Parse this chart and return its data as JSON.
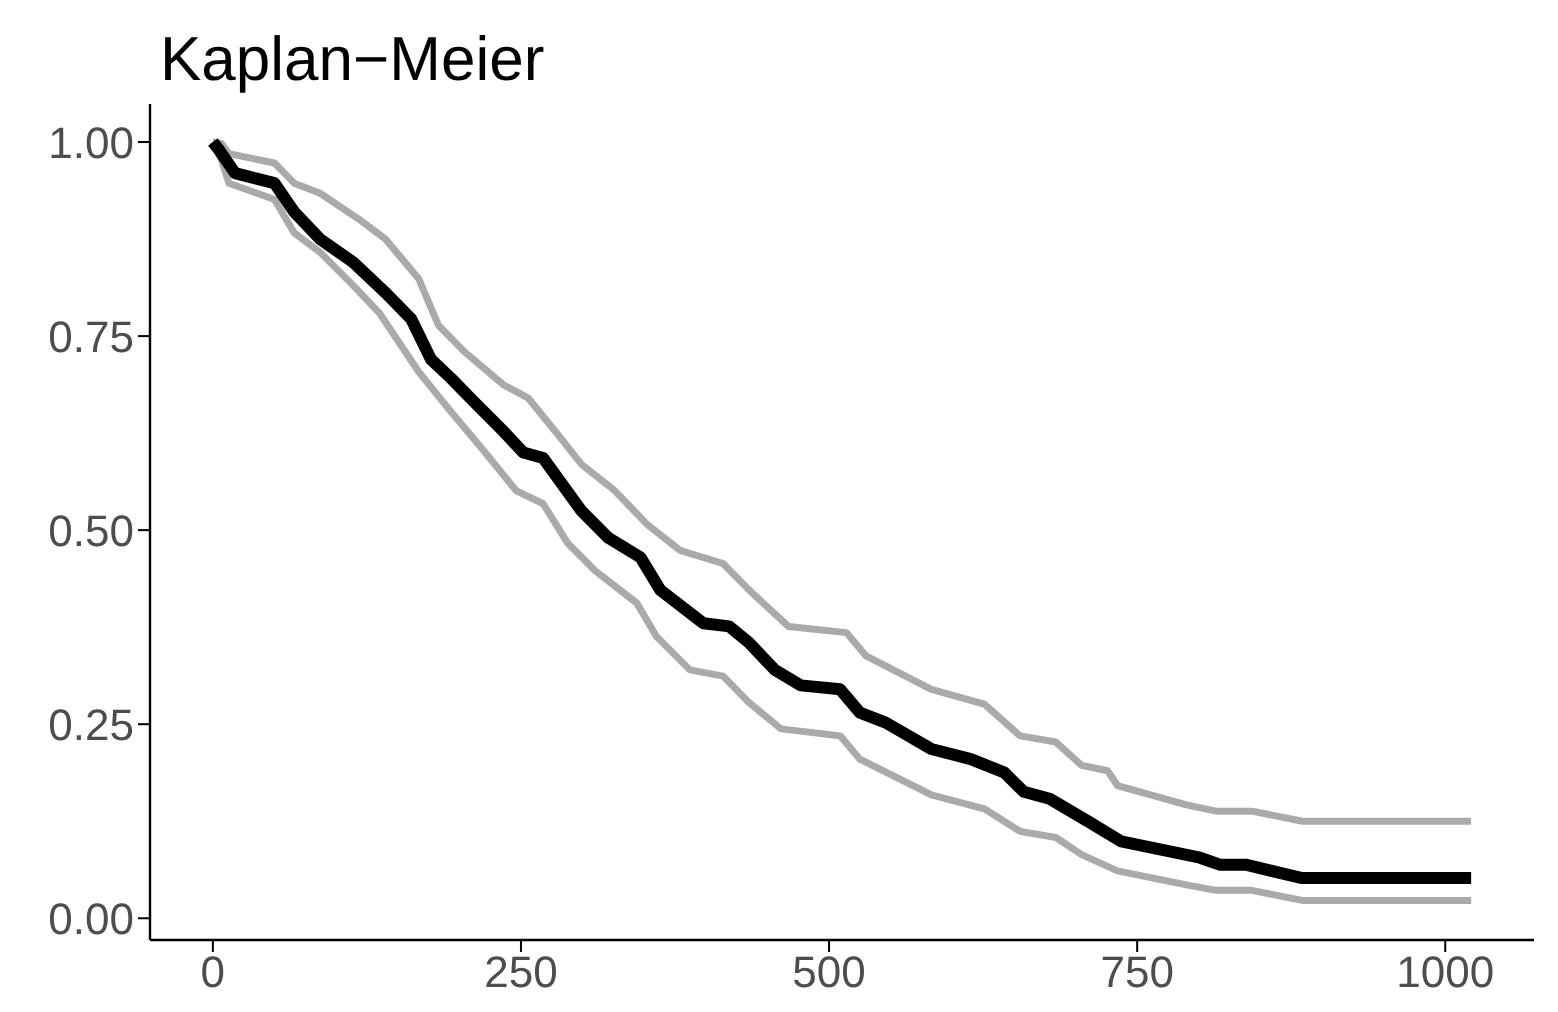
{
  "chart_data": {
    "type": "line",
    "title": "Kaplan−Meier",
    "xlim": [
      -51,
      1072
    ],
    "ylim": [
      -0.028,
      1.049
    ],
    "xticks": [
      0,
      250,
      500,
      750,
      1000
    ],
    "yticks": [
      {
        "value": 0,
        "label": "0.00"
      },
      {
        "value": 0.25,
        "label": "0.25"
      },
      {
        "value": 0.5,
        "label": "0.50"
      },
      {
        "value": 0.75,
        "label": "0.75"
      },
      {
        "value": 1,
        "label": "1.00"
      }
    ],
    "grid": false,
    "legend": false,
    "marker": "none",
    "line_style": "solid",
    "series": [
      {
        "color": "#aaaaaa",
        "x": [
          0,
          7,
          13,
          50,
          66,
          87,
          119,
          140,
          167,
          183,
          204,
          236,
          256,
          278,
          299,
          326,
          352,
          379,
          414,
          435,
          467,
          514,
          530,
          583,
          626,
          655,
          684,
          705,
          726,
          734,
          790,
          814,
          843,
          884,
          1021
        ],
        "values": [
          1,
          0.998,
          0.985,
          0.973,
          0.947,
          0.934,
          0.9,
          0.875,
          0.824,
          0.764,
          0.73,
          0.687,
          0.67,
          0.627,
          0.585,
          0.551,
          0.508,
          0.474,
          0.457,
          0.423,
          0.376,
          0.368,
          0.338,
          0.295,
          0.276,
          0.235,
          0.227,
          0.197,
          0.19,
          0.171,
          0.146,
          0.138,
          0.138,
          0.125,
          0.125
        ]
      },
      {
        "color": "#aaaaaa",
        "x": [
          0,
          7,
          13,
          50,
          66,
          87,
          114,
          135,
          167,
          193,
          220,
          246,
          268,
          288,
          310,
          344,
          360,
          387,
          414,
          435,
          461,
          509,
          525,
          573,
          583,
          626,
          655,
          684,
          705,
          734,
          790,
          814,
          843,
          884,
          1021
        ],
        "values": [
          1,
          0.977,
          0.947,
          0.926,
          0.883,
          0.858,
          0.815,
          0.78,
          0.704,
          0.653,
          0.602,
          0.551,
          0.534,
          0.483,
          0.448,
          0.406,
          0.363,
          0.32,
          0.312,
          0.278,
          0.244,
          0.235,
          0.205,
          0.167,
          0.159,
          0.141,
          0.112,
          0.104,
          0.082,
          0.061,
          0.043,
          0.036,
          0.036,
          0.023,
          0.023
        ]
      },
      {
        "color": "#000000",
        "x": [
          0,
          5,
          18,
          50,
          66,
          87,
          114,
          140,
          161,
          177,
          193,
          214,
          236,
          252,
          268,
          283,
          299,
          321,
          347,
          363,
          398,
          419,
          435,
          456,
          477,
          509,
          525,
          546,
          583,
          615,
          642,
          658,
          679,
          711,
          737,
          801,
          817,
          838,
          883,
          1021
        ],
        "values": [
          1,
          0.99,
          0.96,
          0.947,
          0.91,
          0.875,
          0.845,
          0.806,
          0.772,
          0.72,
          0.696,
          0.662,
          0.627,
          0.6,
          0.593,
          0.56,
          0.525,
          0.49,
          0.465,
          0.423,
          0.38,
          0.376,
          0.355,
          0.32,
          0.3,
          0.295,
          0.265,
          0.252,
          0.218,
          0.205,
          0.188,
          0.163,
          0.154,
          0.124,
          0.099,
          0.078,
          0.069,
          0.069,
          0.052,
          0.052
        ]
      }
    ]
  }
}
